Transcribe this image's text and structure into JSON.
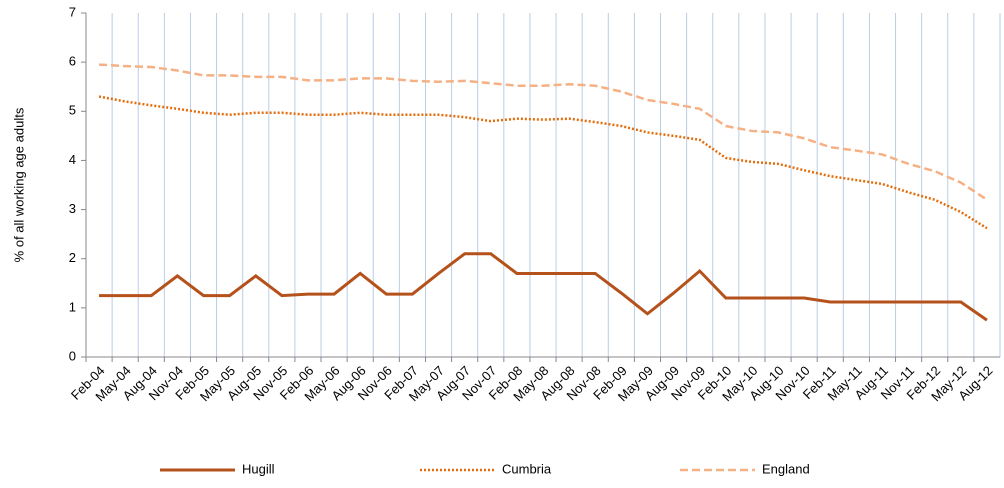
{
  "chart_data": {
    "type": "line",
    "y_label": "% of all working age adults",
    "categories": [
      "Feb-04",
      "May-04",
      "Aug-04",
      "Nov-04",
      "Feb-05",
      "May-05",
      "Aug-05",
      "Nov-05",
      "Feb-06",
      "May-06",
      "Aug-06",
      "Nov-06",
      "Feb-07",
      "May-07",
      "Aug-07",
      "Nov-07",
      "Feb-08",
      "May-08",
      "Aug-08",
      "Nov-08",
      "Feb-09",
      "May-09",
      "Aug-09",
      "Nov-09",
      "Feb-10",
      "May-10",
      "Aug-10",
      "Nov-10",
      "Feb-11",
      "May-11",
      "Aug-11",
      "Nov-11",
      "Feb-12",
      "May-12",
      "Aug-12"
    ],
    "series": [
      {
        "name": "Hugill",
        "color": "#b5521b",
        "dash": "solid",
        "values": [
          1.25,
          1.25,
          1.25,
          1.65,
          1.25,
          1.25,
          1.65,
          1.25,
          1.28,
          1.28,
          1.7,
          1.28,
          1.28,
          1.7,
          2.1,
          2.1,
          1.7,
          1.7,
          1.7,
          1.7,
          1.3,
          0.88,
          1.3,
          1.75,
          1.2,
          1.2,
          1.2,
          1.2,
          1.12,
          1.12,
          1.12,
          1.12,
          1.12,
          1.12,
          0.75
        ]
      },
      {
        "name": "Cumbria",
        "color": "#e46c0a",
        "dash": "dotted",
        "values": [
          5.3,
          5.2,
          5.12,
          5.05,
          4.97,
          4.93,
          4.97,
          4.97,
          4.93,
          4.93,
          4.97,
          4.93,
          4.93,
          4.93,
          4.88,
          4.8,
          4.85,
          4.83,
          4.85,
          4.78,
          4.7,
          4.57,
          4.5,
          4.42,
          4.05,
          3.97,
          3.93,
          3.8,
          3.68,
          3.6,
          3.52,
          3.35,
          3.2,
          2.95,
          2.62
        ]
      },
      {
        "name": "England",
        "color": "#f5b183",
        "dash": "dashed",
        "values": [
          5.95,
          5.92,
          5.9,
          5.83,
          5.73,
          5.73,
          5.7,
          5.7,
          5.63,
          5.63,
          5.67,
          5.67,
          5.62,
          5.6,
          5.62,
          5.57,
          5.52,
          5.52,
          5.55,
          5.52,
          5.4,
          5.23,
          5.15,
          5.05,
          4.7,
          4.6,
          4.57,
          4.45,
          4.27,
          4.2,
          4.12,
          3.93,
          3.78,
          3.55,
          3.2
        ]
      }
    ],
    "ylim": [
      0,
      7
    ],
    "yticks": [
      0,
      1,
      2,
      3,
      4,
      5,
      6,
      7
    ],
    "grid": "vertical",
    "legend": "bottom"
  }
}
